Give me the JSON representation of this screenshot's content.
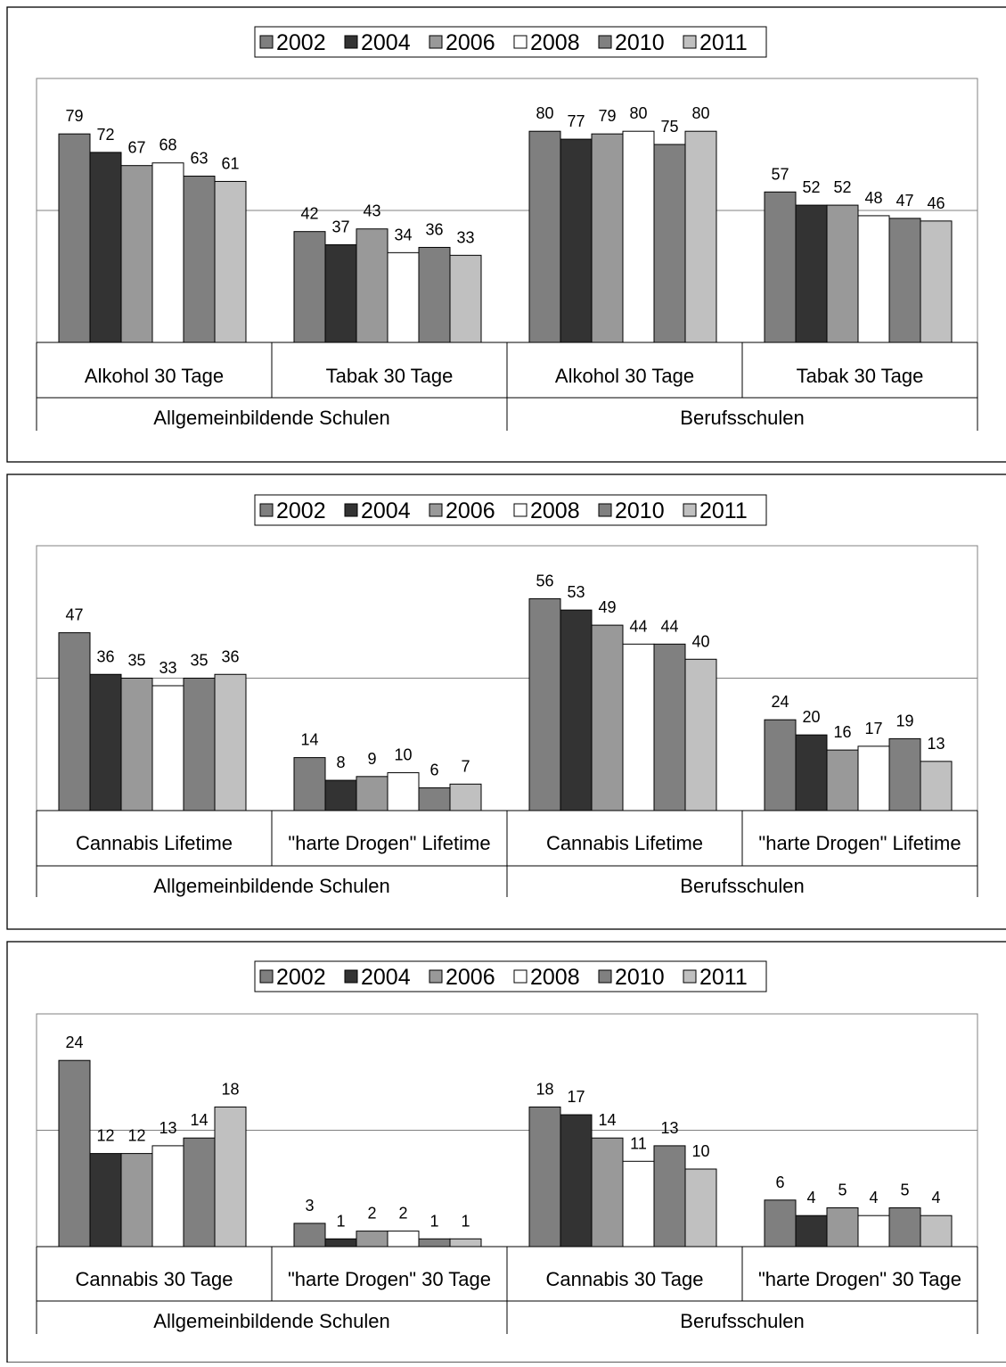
{
  "colors": {
    "2002": "#7f7f7f",
    "2004": "#333333",
    "2006": "#999999",
    "2008": "#ffffff",
    "2010": "#808080",
    "2011": "#c0c0c0",
    "gridline": "#808080",
    "plot_border": "#808080",
    "frame": "#000000"
  },
  "chart_data": [
    {
      "type": "bar",
      "legend": [
        "2002",
        "2004",
        "2006",
        "2008",
        "2010",
        "2011"
      ],
      "legend_position": "top-center",
      "groups": [
        "Allgemeinbildende Schulen",
        "Berufsschulen"
      ],
      "categories": [
        "Alkohol 30 Tage",
        "Tabak 30 Tage",
        "Alkohol 30 Tage",
        "Tabak 30 Tage"
      ],
      "series": [
        {
          "name": "2002",
          "values": [
            79,
            42,
            80,
            57
          ]
        },
        {
          "name": "2004",
          "values": [
            72,
            37,
            77,
            52
          ]
        },
        {
          "name": "2006",
          "values": [
            67,
            43,
            79,
            52
          ]
        },
        {
          "name": "2008",
          "values": [
            68,
            34,
            80,
            48
          ]
        },
        {
          "name": "2010",
          "values": [
            63,
            36,
            75,
            47
          ]
        },
        {
          "name": "2011",
          "values": [
            61,
            33,
            80,
            46
          ]
        }
      ],
      "ylim": [
        0,
        100
      ],
      "gridlines": [
        50
      ]
    },
    {
      "type": "bar",
      "legend": [
        "2002",
        "2004",
        "2006",
        "2008",
        "2010",
        "2011"
      ],
      "legend_position": "top-center",
      "groups": [
        "Allgemeinbildende Schulen",
        "Berufsschulen"
      ],
      "categories": [
        "Cannabis Lifetime",
        "\"harte Drogen\" Lifetime",
        "Cannabis Lifetime",
        "\"harte Drogen\" Lifetime"
      ],
      "series": [
        {
          "name": "2002",
          "values": [
            47,
            14,
            56,
            24
          ]
        },
        {
          "name": "2004",
          "values": [
            36,
            8,
            53,
            20
          ]
        },
        {
          "name": "2006",
          "values": [
            35,
            9,
            49,
            16
          ]
        },
        {
          "name": "2008",
          "values": [
            33,
            10,
            44,
            17
          ]
        },
        {
          "name": "2010",
          "values": [
            35,
            6,
            44,
            19
          ]
        },
        {
          "name": "2011",
          "values": [
            36,
            7,
            40,
            13
          ]
        }
      ],
      "ylim": [
        0,
        70
      ],
      "gridlines": [
        35
      ]
    },
    {
      "type": "bar",
      "legend": [
        "2002",
        "2004",
        "2006",
        "2008",
        "2010",
        "2011"
      ],
      "legend_position": "top-center",
      "groups": [
        "Allgemeinbildende Schulen",
        "Berufsschulen"
      ],
      "categories": [
        "Cannabis 30 Tage",
        "\"harte Drogen\" 30 Tage",
        "Cannabis 30 Tage",
        "\"harte Drogen\" 30 Tage"
      ],
      "series": [
        {
          "name": "2002",
          "values": [
            24,
            3,
            18,
            6
          ]
        },
        {
          "name": "2004",
          "values": [
            12,
            1,
            17,
            4
          ]
        },
        {
          "name": "2006",
          "values": [
            12,
            2,
            14,
            5
          ]
        },
        {
          "name": "2008",
          "values": [
            13,
            2,
            11,
            4
          ]
        },
        {
          "name": "2010",
          "values": [
            14,
            1,
            13,
            5
          ]
        },
        {
          "name": "2011",
          "values": [
            18,
            1,
            10,
            4
          ]
        }
      ],
      "ylim": [
        0,
        30
      ],
      "gridlines": [
        15
      ]
    }
  ]
}
